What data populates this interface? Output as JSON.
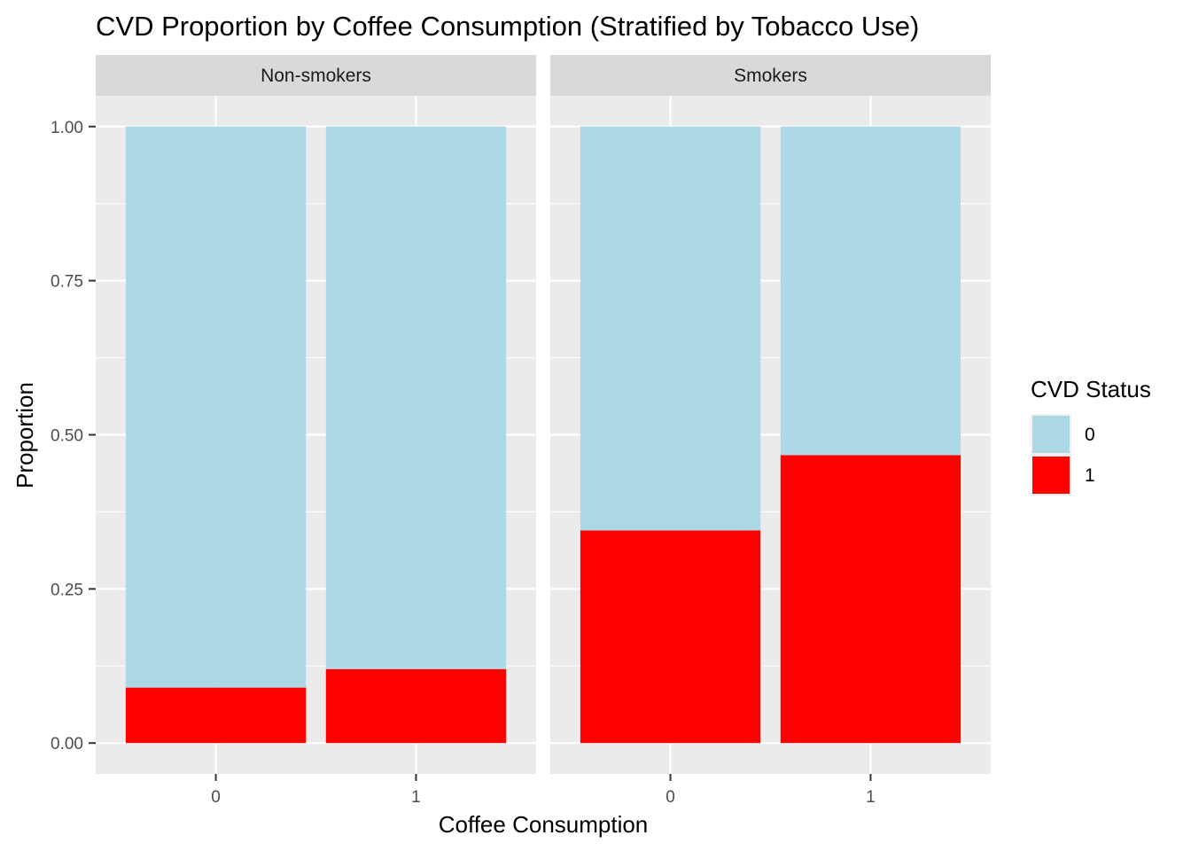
{
  "chart_data": {
    "type": "bar",
    "stacked": true,
    "title": "CVD Proportion by Coffee Consumption (Stratified by Tobacco Use)",
    "xlabel": "Coffee Consumption",
    "ylabel": "Proportion",
    "ylim": [
      -0.05,
      1.05
    ],
    "y_ticks": [
      "0.00",
      "0.25",
      "0.50",
      "0.75",
      "1.00"
    ],
    "categories": [
      "0",
      "1"
    ],
    "grid": true,
    "legend": {
      "title": "CVD Status",
      "position": "right",
      "entries": [
        {
          "label": "0",
          "color": "#ADD8E6"
        },
        {
          "label": "1",
          "color": "#FF0000"
        }
      ]
    },
    "panels": [
      {
        "name": "Non-smokers",
        "series": [
          {
            "name": "1",
            "color": "#FF0000",
            "values": [
              0.09,
              0.12
            ]
          },
          {
            "name": "0",
            "color": "#ADD8E6",
            "values": [
              0.91,
              0.88
            ]
          }
        ]
      },
      {
        "name": "Smokers",
        "series": [
          {
            "name": "1",
            "color": "#FF0000",
            "values": [
              0.345,
              0.467
            ]
          },
          {
            "name": "0",
            "color": "#ADD8E6",
            "values": [
              0.655,
              0.533
            ]
          }
        ]
      }
    ]
  }
}
